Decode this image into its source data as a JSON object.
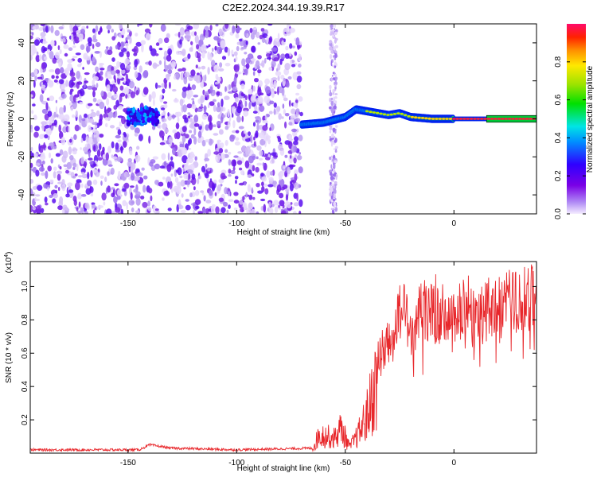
{
  "chart_data": [
    {
      "type": "heatmap",
      "title": "C2E2.2024.344.19.39.R17",
      "xlabel": "Height of straight line (km)",
      "ylabel": "Frequency (Hz)",
      "xlim": [
        -195,
        38
      ],
      "ylim": [
        -50,
        50
      ],
      "xticks": [
        "-150",
        "-100",
        "-50",
        "0"
      ],
      "yticks": [
        "40",
        "20",
        "0",
        "-20",
        "-40"
      ],
      "colorbar": {
        "label": "Normalized spectral amplitude",
        "range": [
          0,
          1
        ],
        "ticks": [
          "0.0",
          "0.2",
          "0.4",
          "0.6",
          "0.8"
        ],
        "colormap": "rainbow (white-purple-blue-cyan-green-yellow-red)"
      },
      "features": {
        "noise_regions_km": [
          [
            -195,
            -70
          ]
        ],
        "signal_track_start_km": -70,
        "track_center_freq_hz": [
          [
            -147,
            0
          ],
          [
            -142,
            2
          ],
          [
            -138,
            1
          ],
          [
            -70,
            -3
          ],
          [
            -60,
            -2
          ],
          [
            -50,
            1
          ],
          [
            -45,
            5
          ],
          [
            -40,
            4
          ],
          [
            -30,
            2
          ],
          [
            -25,
            3
          ],
          [
            -20,
            1
          ],
          [
            -10,
            0
          ],
          [
            0,
            0
          ],
          [
            20,
            0
          ],
          [
            38,
            0
          ]
        ]
      },
      "grid": false
    },
    {
      "type": "line",
      "title": "",
      "xlabel": "Height of straight line (km)",
      "ylabel": "SNR (10 * v/v)",
      "multiplier": "(x10",
      "multiplier_exp": "4",
      "multiplier_close": ")",
      "xlim": [
        -195,
        38
      ],
      "ylim": [
        0,
        1.15
      ],
      "xticks": [
        "-150",
        "-100",
        "-50",
        "0"
      ],
      "yticks": [
        "1.0",
        "0.8",
        "0.6",
        "0.4",
        "0.2"
      ],
      "series": [
        {
          "color": "#e8272b",
          "envelope": [
            [
              -195,
              0.02
            ],
            [
              -145,
              0.02
            ],
            [
              -140,
              0.05
            ],
            [
              -130,
              0.03
            ],
            [
              -100,
              0.02
            ],
            [
              -65,
              0.03
            ],
            [
              -62,
              0.15
            ],
            [
              -55,
              0.12
            ],
            [
              -52,
              0.2
            ],
            [
              -48,
              0.05
            ],
            [
              -44,
              0.15
            ],
            [
              -40,
              0.3
            ],
            [
              -36,
              0.55
            ],
            [
              -32,
              0.65
            ],
            [
              -28,
              0.7
            ],
            [
              -25,
              0.9
            ],
            [
              -22,
              0.85
            ],
            [
              -18,
              0.8
            ],
            [
              -14,
              0.9
            ],
            [
              -10,
              0.85
            ],
            [
              -5,
              0.85
            ],
            [
              0,
              0.82
            ],
            [
              5,
              0.88
            ],
            [
              10,
              0.85
            ],
            [
              20,
              0.9
            ],
            [
              30,
              0.93
            ],
            [
              38,
              0.96
            ]
          ]
        }
      ],
      "grid": false
    }
  ]
}
